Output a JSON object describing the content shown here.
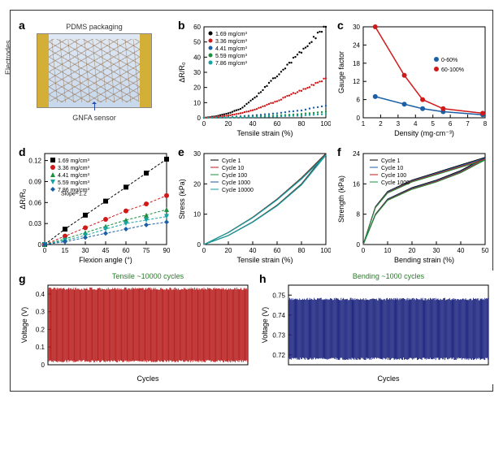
{
  "panels": {
    "a": {
      "label": "a",
      "pdms": "PDMS packaging",
      "electrodes": "Electrodes",
      "sensor": "GNFA sensor"
    },
    "b": {
      "label": "b",
      "xlabel": "Tensile strain (%)",
      "ylabel": "ΔR/R₀",
      "xlim": [
        0,
        100
      ],
      "ylim": [
        0,
        60
      ],
      "xtick_step": 20,
      "ytick_step": 10,
      "series": [
        {
          "name": "1.69 mg/cm³",
          "color": "#000000",
          "pts": [
            [
              0,
              0
            ],
            [
              10,
              1
            ],
            [
              20,
              3
            ],
            [
              30,
              6
            ],
            [
              40,
              12
            ],
            [
              50,
              20
            ],
            [
              60,
              28
            ],
            [
              70,
              36
            ],
            [
              80,
              44
            ],
            [
              90,
              52
            ],
            [
              100,
              60
            ]
          ]
        },
        {
          "name": "3.36 mg/cm³",
          "color": "#d11919",
          "pts": [
            [
              0,
              0
            ],
            [
              10,
              0.5
            ],
            [
              20,
              1.5
            ],
            [
              30,
              3
            ],
            [
              40,
              5
            ],
            [
              50,
              8
            ],
            [
              60,
              11
            ],
            [
              70,
              15
            ],
            [
              80,
              18
            ],
            [
              90,
              22
            ],
            [
              100,
              26
            ]
          ]
        },
        {
          "name": "4.41 mg/cm³",
          "color": "#1b5fa6",
          "pts": [
            [
              0,
              0
            ],
            [
              20,
              0.5
            ],
            [
              40,
              1.5
            ],
            [
              60,
              3
            ],
            [
              80,
              5
            ],
            [
              100,
              8
            ]
          ]
        },
        {
          "name": "5.59 mg/cm³",
          "color": "#1a8f3e",
          "pts": [
            [
              0,
              0
            ],
            [
              20,
              0.3
            ],
            [
              40,
              0.8
            ],
            [
              60,
              1.5
            ],
            [
              80,
              2.5
            ],
            [
              100,
              4
            ]
          ]
        },
        {
          "name": "7.86 mg/cm³",
          "color": "#17a2a2",
          "pts": [
            [
              0,
              0
            ],
            [
              20,
              0.2
            ],
            [
              40,
              0.5
            ],
            [
              60,
              1
            ],
            [
              80,
              1.5
            ],
            [
              100,
              2.5
            ]
          ]
        }
      ]
    },
    "c": {
      "label": "c",
      "xlabel": "Density (mg·cm⁻³)",
      "ylabel": "Gauge factor",
      "xlim": [
        1,
        8
      ],
      "ylim": [
        0,
        30
      ],
      "xtick_step": 1,
      "ytick_vals": [
        0,
        6,
        12,
        18,
        24,
        30
      ],
      "series": [
        {
          "name": "0-60%",
          "color": "#1b5fa6",
          "pts": [
            [
              1.69,
              7
            ],
            [
              3.36,
              4.5
            ],
            [
              4.41,
              3
            ],
            [
              5.59,
              2
            ],
            [
              7.86,
              1
            ]
          ]
        },
        {
          "name": "60-100%",
          "color": "#d11919",
          "pts": [
            [
              1.69,
              30
            ],
            [
              3.36,
              14
            ],
            [
              4.41,
              6
            ],
            [
              5.59,
              3
            ],
            [
              7.86,
              1.5
            ]
          ]
        }
      ]
    },
    "d": {
      "label": "d",
      "xlabel": "Flexion angle (°)",
      "ylabel": "ΔR/R₀",
      "xlim": [
        0,
        90
      ],
      "ylim": [
        0,
        0.13
      ],
      "xtick_step": 15,
      "ytick_vals": [
        0,
        0.03,
        0.06,
        0.09,
        0.12
      ],
      "slope_note": "Slope~1.2",
      "series": [
        {
          "name": "1.69 mg/cm³",
          "color": "#000000",
          "marker": "square",
          "pts": [
            [
              0,
              0
            ],
            [
              15,
              0.022
            ],
            [
              30,
              0.042
            ],
            [
              45,
              0.062
            ],
            [
              60,
              0.082
            ],
            [
              75,
              0.102
            ],
            [
              90,
              0.122
            ]
          ]
        },
        {
          "name": "3.36 mg/cm³",
          "color": "#d11919",
          "marker": "circle",
          "pts": [
            [
              0,
              0
            ],
            [
              15,
              0.012
            ],
            [
              30,
              0.024
            ],
            [
              45,
              0.036
            ],
            [
              60,
              0.048
            ],
            [
              75,
              0.058
            ],
            [
              90,
              0.07
            ]
          ]
        },
        {
          "name": "4.41 mg/cm³",
          "color": "#1a8f3e",
          "marker": "triangle",
          "pts": [
            [
              0,
              0
            ],
            [
              15,
              0.008
            ],
            [
              30,
              0.017
            ],
            [
              45,
              0.026
            ],
            [
              60,
              0.035
            ],
            [
              75,
              0.042
            ],
            [
              90,
              0.05
            ]
          ]
        },
        {
          "name": "5.59 mg/cm³",
          "color": "#17a2a2",
          "marker": "invtri",
          "pts": [
            [
              0,
              0
            ],
            [
              15,
              0.006
            ],
            [
              30,
              0.013
            ],
            [
              45,
              0.022
            ],
            [
              60,
              0.03
            ],
            [
              75,
              0.035
            ],
            [
              90,
              0.04
            ]
          ]
        },
        {
          "name": "7.86 mg/cm³",
          "color": "#1b5fa6",
          "marker": "diamond",
          "pts": [
            [
              0,
              0
            ],
            [
              15,
              0.004
            ],
            [
              30,
              0.01
            ],
            [
              45,
              0.016
            ],
            [
              60,
              0.022
            ],
            [
              75,
              0.028
            ],
            [
              90,
              0.032
            ]
          ]
        }
      ]
    },
    "e": {
      "label": "e",
      "xlabel": "Tensile strain (%)",
      "ylabel": "Stress (kPa)",
      "xlim": [
        0,
        100
      ],
      "ylim": [
        0,
        30
      ],
      "xtick_step": 20,
      "ytick_step": 10,
      "cycles": [
        "Cycle 1",
        "Cycle 10",
        "Cycle 100",
        "Cycle 1000",
        "Cycle 10000"
      ],
      "colors": [
        "#000",
        "#c01818",
        "#1a8f3e",
        "#1b5fa6",
        "#17a2a2"
      ],
      "loop": [
        [
          0,
          0
        ],
        [
          20,
          4
        ],
        [
          40,
          9
        ],
        [
          60,
          15
        ],
        [
          80,
          22
        ],
        [
          100,
          30
        ],
        [
          80,
          20
        ],
        [
          60,
          13
        ],
        [
          40,
          7.5
        ],
        [
          20,
          3
        ],
        [
          0,
          0
        ]
      ]
    },
    "f": {
      "label": "f",
      "xlabel": "Bending strain (%)",
      "ylabel": "Strength (kPa)",
      "xlim": [
        0,
        50
      ],
      "ylim": [
        0,
        24
      ],
      "xtick_step": 10,
      "ytick_vals": [
        0,
        8,
        16,
        24
      ],
      "cycles": [
        "Cycle 1",
        "Cycle 10",
        "Cycle 100",
        "Cycle 1000"
      ],
      "colors": [
        "#000",
        "#1b5fa6",
        "#c01818",
        "#1a8f3e"
      ],
      "loop": [
        [
          0,
          0
        ],
        [
          5,
          10
        ],
        [
          10,
          14
        ],
        [
          20,
          17
        ],
        [
          30,
          19
        ],
        [
          40,
          21
        ],
        [
          50,
          23
        ],
        [
          40,
          19.5
        ],
        [
          30,
          17
        ],
        [
          20,
          15
        ],
        [
          10,
          12
        ],
        [
          5,
          8
        ],
        [
          0,
          0
        ]
      ]
    },
    "g": {
      "label": "g",
      "title": "Tensile ~10000 cycles",
      "xlabel": "Cycles",
      "ylabel": "Voltage (V)",
      "ylim": [
        0,
        0.45
      ],
      "ytick_vals": [
        0.0,
        0.1,
        0.2,
        0.3,
        0.4
      ],
      "color": "#b71c1c",
      "amp": [
        0.02,
        0.43
      ],
      "n": 280
    },
    "h": {
      "label": "h",
      "title": "Bending ~1000 cycles",
      "xlabel": "Cycles",
      "ylabel": "Voltage (V)",
      "ylim": [
        0.715,
        0.755
      ],
      "ytick_vals": [
        0.72,
        0.73,
        0.74,
        0.75
      ],
      "color": "#1a237e",
      "amp": [
        0.718,
        0.748
      ],
      "n": 260
    }
  }
}
